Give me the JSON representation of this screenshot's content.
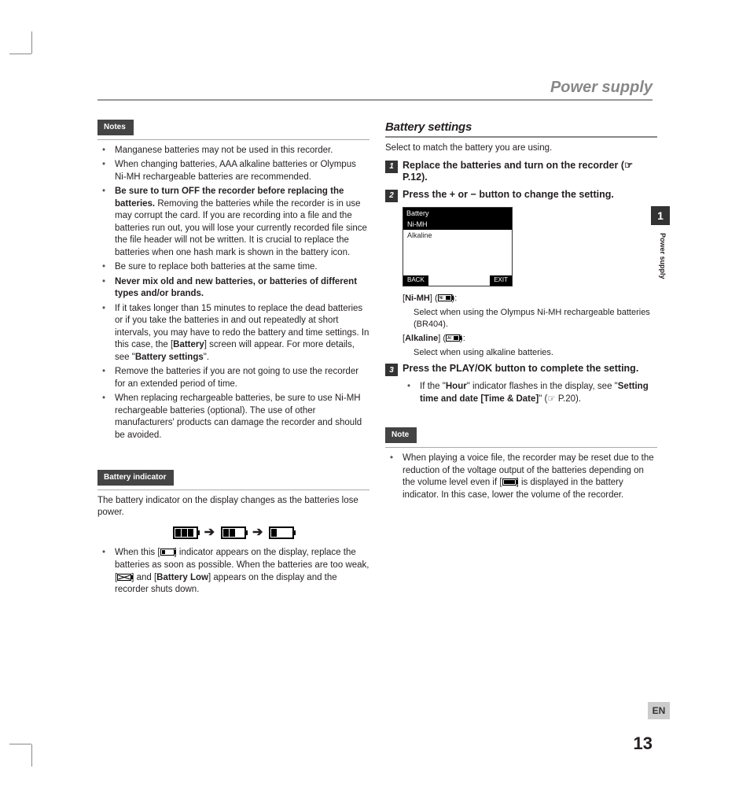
{
  "header": {
    "title": "Power supply"
  },
  "side": {
    "chapter_num": "1",
    "chapter_label": "Power supply",
    "lang": "EN",
    "page": "13"
  },
  "left": {
    "notes_label": "Notes",
    "notes": [
      {
        "html": "Manganese batteries may not be used in this recorder."
      },
      {
        "html": "When changing batteries, AAA alkaline batteries or Olympus Ni-MH rechargeable batteries are recommended."
      },
      {
        "html": "<span class=\"b\">Be sure to turn OFF the recorder before replacing the batteries.</span> Removing the batteries while the recorder is in use may corrupt the card. If you are recording into a file and the batteries run out, you will lose your currently recorded file since the file header will not be written. It is crucial to replace the batteries when one hash mark is shown in the battery icon."
      },
      {
        "html": "Be sure to replace both batteries at the same time."
      },
      {
        "html": "<span class=\"b\">Never mix old and new batteries, or batteries of different types and/or brands.</span>"
      },
      {
        "html": "If it takes longer than 15 minutes to replace the dead batteries or if you take the batteries in and out repeatedly at short intervals, you may have to redo the battery and time settings. In this case, the [<span class=\"b\">Battery</span>] screen will appear. For more details, see \"<span class=\"b\">Battery settings</span>\"."
      },
      {
        "html": "Remove the batteries if you are not going to use the recorder for an extended period of time."
      },
      {
        "html": "When replacing rechargeable batteries, be sure to use Ni-MH rechargeable batteries (optional). The use of other manufacturers' products can damage the recorder and should be avoided."
      }
    ],
    "indicator_label": "Battery indicator",
    "indicator_intro": "The battery indicator on the display changes as the batteries lose power.",
    "indicator_bullet": "When this [<span class=\"inline-icon\" data-name=\"battery-low-icon\" data-interactable=\"false\"><span class=\"b1\"></span></span>] indicator appears on the display, replace the batteries as soon as possible. When the batteries are too weak, [<span class=\"inline-icon\" data-name=\"battery-empty-icon\" data-interactable=\"false\"><span class=\"cross\"></span></span>] and [<span class=\"b\">Battery Low</span>] appears on the display and the recorder shuts down."
  },
  "right": {
    "heading": "Battery settings",
    "intro": "Select to match the battery you are using.",
    "steps": [
      {
        "num": "1",
        "html": "Replace the batteries and turn on the recorder (☞ P.12)."
      },
      {
        "num": "2",
        "html": "Press the <span class=\"b\">+</span> or <span class=\"b\">−</span> button to change the setting."
      },
      {
        "num": "3",
        "html": "Press the <span class=\"b\">PLAY/OK</span> button to complete the setting."
      }
    ],
    "lcd": {
      "title": "Battery",
      "rows": [
        {
          "label": "Ni-MH",
          "selected": true
        },
        {
          "label": "Alkaline",
          "selected": false
        }
      ],
      "back": "BACK",
      "exit": "EXIT"
    },
    "defs_nimh_label": "[<span class=\"b\">Ni-MH</span>] (<span class=\"inline-icon\" data-name=\"battery-nimh-icon\" data-interactable=\"false\"><span class=\"tag\">Ni</span><span class=\"b1\" style=\"left:9px;right:1px;width:auto\"></span></span>):",
    "defs_nimh_body": "Select when using the Olympus Ni-MH rechargeable batteries (BR404).",
    "defs_alk_label": "[<span class=\"b\">Alkaline</span>] (<span class=\"inline-icon\" data-name=\"battery-alkaline-icon\" data-interactable=\"false\"><span class=\"tag\">Al</span><span class=\"b1\" style=\"left:9px;right:1px;width:auto\"></span></span>):",
    "defs_alk_body": "Select when using alkaline batteries.",
    "step3_bullet": "If the \"<span class=\"b\">Hour</span>\" indicator flashes in the display, see \"<span class=\"b\">Setting time and date [Time & Date]</span>\" (☞ P.20).",
    "note_label": "Note",
    "note_body": "When playing a voice file, the recorder may be reset due to the reduction of the voltage output of the batteries depending on the volume level even if [<span class=\"inline-icon full\" data-name=\"battery-full-icon\" data-interactable=\"false\"><span class=\"b1\"></span></span>] is displayed in the battery indicator. In this case, lower the volume of the recorder."
  },
  "colors": {
    "header_grey": "#888888",
    "label_bg": "#444444",
    "tab_bg": "#333333",
    "lang_bg": "#cccccc"
  }
}
